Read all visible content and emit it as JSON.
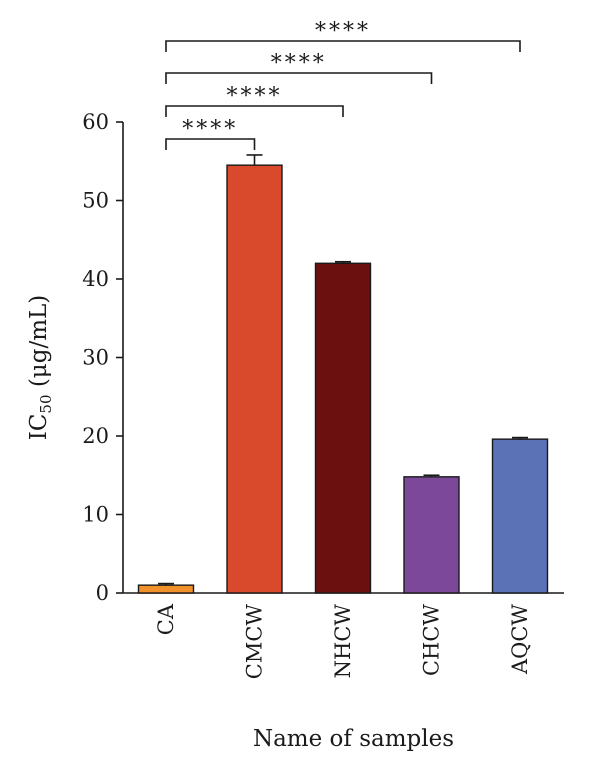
{
  "chart_data": {
    "type": "bar",
    "categories": [
      "CA",
      "CMCW",
      "NHCW",
      "CHCW",
      "AQCW"
    ],
    "values": [
      1.0,
      54.5,
      42.0,
      14.8,
      19.6
    ],
    "errors": [
      0.2,
      1.3,
      0.2,
      0.2,
      0.2
    ],
    "colors": [
      "#f0912b",
      "#d94a2c",
      "#6b0f0f",
      "#7c489a",
      "#5b72b6"
    ],
    "ylim": [
      0,
      60
    ],
    "yticks": [
      0,
      10,
      20,
      30,
      40,
      50,
      60
    ],
    "xlabel": "Name of samples",
    "ylabel": {
      "prefix": "IC",
      "subscript": "50",
      "suffix": " (μg/mL)"
    },
    "grid": false,
    "legend": "none",
    "significance": [
      {
        "from": "CA",
        "to": "CMCW",
        "label": "****"
      },
      {
        "from": "CA",
        "to": "NHCW",
        "label": "****"
      },
      {
        "from": "CA",
        "to": "CHCW",
        "label": "****"
      },
      {
        "from": "CA",
        "to": "AQCW",
        "label": "****"
      }
    ]
  }
}
